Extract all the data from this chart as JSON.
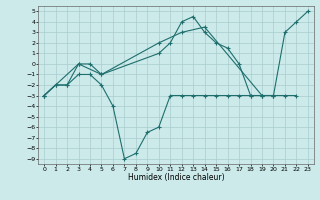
{
  "xlabel": "Humidex (Indice chaleur)",
  "bg_color": "#cceaea",
  "grid_color": "#aacccc",
  "line_color": "#1e6e6e",
  "xlim": [
    -0.5,
    23.5
  ],
  "ylim": [
    -9.5,
    5.5
  ],
  "xticks": [
    0,
    1,
    2,
    3,
    4,
    5,
    6,
    7,
    8,
    9,
    10,
    11,
    12,
    13,
    14,
    15,
    16,
    17,
    18,
    19,
    20,
    21,
    22,
    23
  ],
  "yticks": [
    5,
    4,
    3,
    2,
    1,
    0,
    -1,
    -2,
    -3,
    -4,
    -5,
    -6,
    -7,
    -8,
    -9
  ],
  "line1": [
    [
      0,
      -3
    ],
    [
      1,
      -2
    ],
    [
      2,
      -2
    ],
    [
      3,
      -1
    ],
    [
      4,
      -1
    ],
    [
      5,
      -2
    ],
    [
      6,
      -4
    ],
    [
      7,
      -9
    ],
    [
      8,
      -8.5
    ],
    [
      9,
      -6.5
    ],
    [
      10,
      -6
    ],
    [
      11,
      -3
    ],
    [
      12,
      -3
    ],
    [
      13,
      -3
    ],
    [
      14,
      -3
    ],
    [
      15,
      -3
    ],
    [
      16,
      -3
    ],
    [
      17,
      -3
    ],
    [
      18,
      -3
    ],
    [
      19,
      -3
    ],
    [
      20,
      -3
    ]
  ],
  "line2": [
    [
      0,
      -3
    ],
    [
      1,
      -2
    ],
    [
      2,
      -2
    ],
    [
      3,
      0
    ],
    [
      4,
      0
    ],
    [
      5,
      -1
    ],
    [
      10,
      1
    ],
    [
      11,
      2
    ],
    [
      12,
      4
    ],
    [
      13,
      4.5
    ],
    [
      14,
      3
    ],
    [
      15,
      2
    ],
    [
      16,
      1.5
    ],
    [
      17,
      0
    ],
    [
      18,
      -3
    ],
    [
      19,
      -3
    ],
    [
      20,
      -3
    ],
    [
      21,
      -3
    ],
    [
      22,
      -3
    ]
  ],
  "line3": [
    [
      0,
      -3
    ],
    [
      3,
      0
    ],
    [
      5,
      -1
    ],
    [
      10,
      2
    ],
    [
      12,
      3
    ],
    [
      14,
      3.5
    ],
    [
      19,
      -3
    ],
    [
      20,
      -3
    ],
    [
      21,
      3
    ],
    [
      22,
      4
    ],
    [
      23,
      5
    ]
  ]
}
